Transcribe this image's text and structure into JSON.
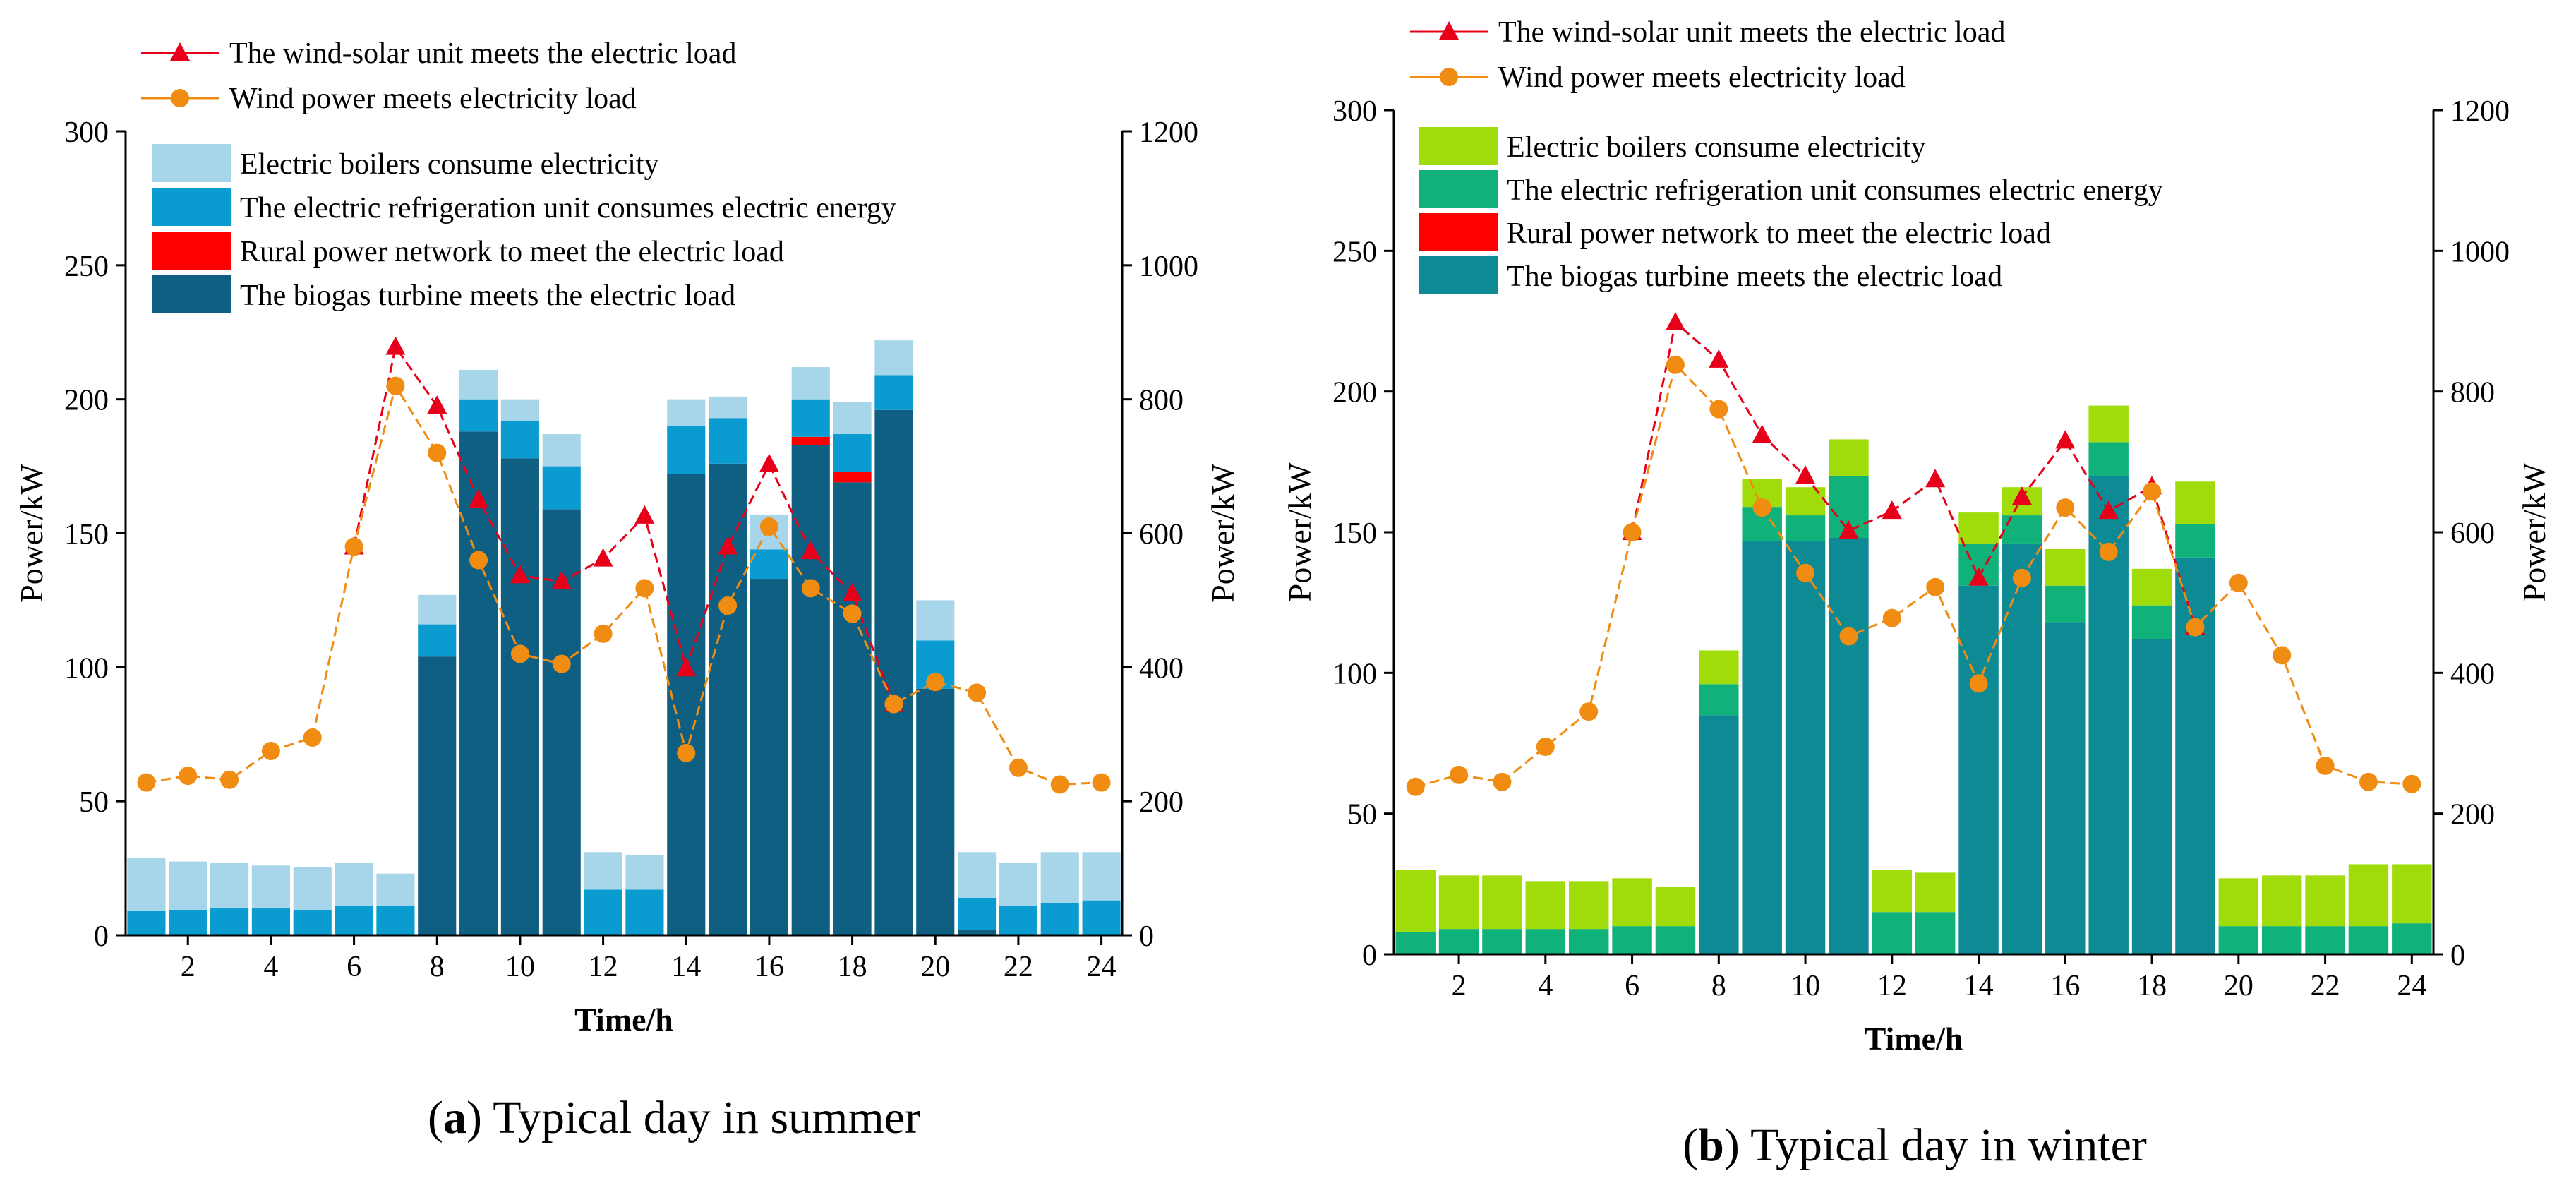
{
  "chart_data": [
    {
      "id": "summer",
      "type": "stacked-bar+line",
      "caption_letter": "a",
      "caption_text": "Typical day in summer",
      "xlabel": "Time/h",
      "ylabel_left": "Power/kW",
      "ylabel_right": "Power/kW",
      "xlim": [
        0.5,
        24.5
      ],
      "ylim_left": [
        0,
        300
      ],
      "ylim_right": [
        0,
        1200
      ],
      "x_ticks": [
        2,
        4,
        6,
        8,
        10,
        12,
        14,
        16,
        18,
        20,
        22,
        24
      ],
      "y_ticks_left": [
        0,
        50,
        100,
        150,
        200,
        250,
        300
      ],
      "y_ticks_right": [
        0,
        200,
        400,
        600,
        800,
        1000,
        1200
      ],
      "x": [
        1,
        2,
        3,
        4,
        5,
        6,
        7,
        8,
        9,
        10,
        11,
        12,
        13,
        14,
        15,
        16,
        17,
        18,
        19,
        20,
        21,
        22,
        23,
        24
      ],
      "bar_series": [
        {
          "name": "The biogas turbine meets the electric load",
          "color": "#0e5f82",
          "values": [
            0,
            0,
            0,
            0,
            0,
            0,
            0,
            104,
            188,
            178,
            159,
            0,
            0,
            172,
            176,
            133,
            183,
            169,
            196,
            92,
            2,
            0,
            0,
            0
          ]
        },
        {
          "name": "Rural power network to meet the electric load",
          "color": "#ff0000",
          "values": [
            0,
            0,
            0,
            0,
            0,
            0,
            0,
            0,
            0,
            0,
            0,
            0,
            0,
            0,
            0,
            0,
            3,
            4,
            0,
            0,
            0,
            0,
            0,
            0
          ]
        },
        {
          "name": "The electric refrigeration unit consumes electric energy",
          "color": "#0a9bd0",
          "values": [
            9,
            9.5,
            10,
            10,
            9.5,
            11,
            11,
            12,
            12,
            14,
            16,
            17,
            17,
            18,
            17,
            11,
            14,
            14,
            13,
            18,
            12,
            11,
            12,
            13
          ]
        },
        {
          "name": "Electric boilers consume electricity",
          "color": "#a7d6ea",
          "values": [
            20,
            18,
            17,
            16,
            16,
            16,
            12,
            11,
            11,
            8,
            12,
            14,
            13,
            10,
            8,
            13,
            12,
            12,
            13,
            15,
            17,
            16,
            19,
            18
          ]
        }
      ],
      "line_series": [
        {
          "name": "The wind-solar unit meets the electric load",
          "color": "#e8001b",
          "marker": "triangle",
          "values": [
            null,
            null,
            null,
            null,
            null,
            580,
            878,
            790,
            650,
            537,
            528,
            562,
            626,
            398,
            580,
            703,
            573,
            510,
            345,
            null,
            null,
            null,
            null,
            null
          ]
        },
        {
          "name": "Wind power meets electricity load",
          "color": "#f18c13",
          "marker": "circle",
          "values": [
            228,
            238,
            232,
            275,
            295,
            580,
            820,
            720,
            560,
            420,
            405,
            450,
            518,
            272,
            492,
            610,
            518,
            480,
            345,
            378,
            362,
            250,
            225,
            228
          ]
        }
      ],
      "line_legend_order": [
        0,
        1
      ],
      "bar_legend_order": [
        3,
        2,
        1,
        0
      ]
    },
    {
      "id": "winter",
      "type": "stacked-bar+line",
      "caption_letter": "b",
      "caption_text": "Typical day in winter",
      "xlabel": "Time/h",
      "ylabel_left": "Power/kW",
      "ylabel_right": "Power/kW",
      "xlim": [
        0.5,
        24.5
      ],
      "ylim_left": [
        0,
        300
      ],
      "ylim_right": [
        0,
        1200
      ],
      "x_ticks": [
        2,
        4,
        6,
        8,
        10,
        12,
        14,
        16,
        18,
        20,
        22,
        24
      ],
      "y_ticks_left": [
        0,
        50,
        100,
        150,
        200,
        250,
        300
      ],
      "y_ticks_right": [
        0,
        200,
        400,
        600,
        800,
        1000,
        1200
      ],
      "x": [
        1,
        2,
        3,
        4,
        5,
        6,
        7,
        8,
        9,
        10,
        11,
        12,
        13,
        14,
        15,
        16,
        17,
        18,
        19,
        20,
        21,
        22,
        23,
        24
      ],
      "bar_series": [
        {
          "name": "The biogas turbine meets the electric load",
          "color": "#0e8a95",
          "values": [
            0,
            0,
            0,
            0,
            0,
            0,
            0,
            85,
            147,
            147,
            148,
            0,
            0,
            131,
            146,
            118,
            170,
            112,
            141,
            0,
            0,
            0,
            0,
            0
          ]
        },
        {
          "name": "Rural power network to meet the electric load",
          "color": "#ff0000",
          "values": [
            0,
            0,
            0,
            0,
            0,
            0,
            0,
            0,
            0,
            0,
            0,
            0,
            0,
            0,
            0,
            0,
            0,
            0,
            0,
            0,
            0,
            0,
            0,
            0
          ]
        },
        {
          "name": "The electric refrigeration unit consumes electric energy",
          "color": "#11b17a",
          "values": [
            8,
            9,
            9,
            9,
            9,
            10,
            10,
            11,
            12,
            9,
            22,
            15,
            15,
            15,
            10,
            13,
            12,
            12,
            12,
            10,
            10,
            10,
            10,
            11
          ]
        },
        {
          "name": "Electric boilers consume electricity",
          "color": "#9fdc0a",
          "values": [
            22,
            19,
            19,
            17,
            17,
            17,
            14,
            12,
            10,
            10,
            13,
            15,
            14,
            11,
            10,
            13,
            13,
            13,
            15,
            17,
            18,
            18,
            22,
            21
          ]
        }
      ],
      "line_series": [
        {
          "name": "The wind-solar unit meets the electric load",
          "color": "#e8001b",
          "marker": "triangle",
          "values": [
            null,
            null,
            null,
            null,
            null,
            600,
            898,
            845,
            738,
            680,
            602,
            630,
            675,
            535,
            650,
            730,
            630,
            665,
            465,
            null,
            null,
            null,
            null,
            null
          ]
        },
        {
          "name": "Wind power meets electricity load",
          "color": "#f18c13",
          "marker": "circle",
          "values": [
            238,
            255,
            245,
            295,
            345,
            600,
            838,
            775,
            635,
            542,
            452,
            478,
            522,
            385,
            535,
            635,
            572,
            658,
            465,
            528,
            425,
            268,
            245,
            242
          ]
        }
      ],
      "line_legend_order": [
        0,
        1
      ],
      "bar_legend_order": [
        3,
        2,
        1,
        0
      ]
    }
  ]
}
